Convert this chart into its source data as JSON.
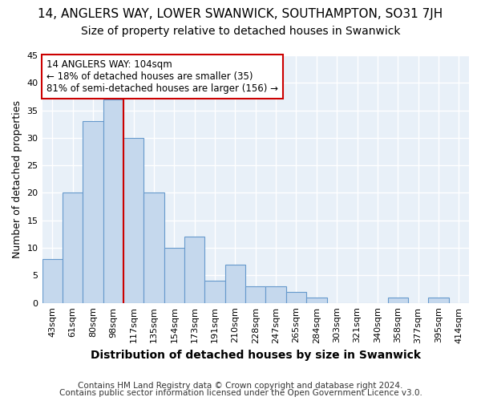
{
  "title": "14, ANGLERS WAY, LOWER SWANWICK, SOUTHAMPTON, SO31 7JH",
  "subtitle": "Size of property relative to detached houses in Swanwick",
  "xlabel": "Distribution of detached houses by size in Swanwick",
  "ylabel": "Number of detached properties",
  "categories": [
    "43sqm",
    "61sqm",
    "80sqm",
    "98sqm",
    "117sqm",
    "135sqm",
    "154sqm",
    "173sqm",
    "191sqm",
    "210sqm",
    "228sqm",
    "247sqm",
    "265sqm",
    "284sqm",
    "303sqm",
    "321sqm",
    "340sqm",
    "358sqm",
    "377sqm",
    "395sqm",
    "414sqm"
  ],
  "values": [
    8,
    20,
    33,
    37,
    30,
    20,
    10,
    12,
    4,
    7,
    3,
    3,
    2,
    1,
    0,
    0,
    0,
    1,
    0,
    1,
    0
  ],
  "bar_color": "#c5d8ed",
  "bar_edge_color": "#6699cc",
  "annotation_text_line1": "14 ANGLERS WAY: 104sqm",
  "annotation_text_line2": "← 18% of detached houses are smaller (35)",
  "annotation_text_line3": "81% of semi-detached houses are larger (156) →",
  "annotation_box_facecolor": "#ffffff",
  "annotation_box_edgecolor": "#cc0000",
  "property_line_color": "#cc0000",
  "property_line_x": 3.5,
  "ylim": [
    0,
    45
  ],
  "yticks": [
    0,
    5,
    10,
    15,
    20,
    25,
    30,
    35,
    40,
    45
  ],
  "axes_facecolor": "#e8f0f8",
  "fig_facecolor": "#ffffff",
  "grid_color": "#ffffff",
  "title_fontsize": 11,
  "subtitle_fontsize": 10,
  "xlabel_fontsize": 10,
  "ylabel_fontsize": 9,
  "tick_fontsize": 8,
  "annotation_fontsize": 8.5,
  "footer_fontsize": 7.5,
  "footer1": "Contains HM Land Registry data © Crown copyright and database right 2024.",
  "footer2": "Contains public sector information licensed under the Open Government Licence v3.0."
}
